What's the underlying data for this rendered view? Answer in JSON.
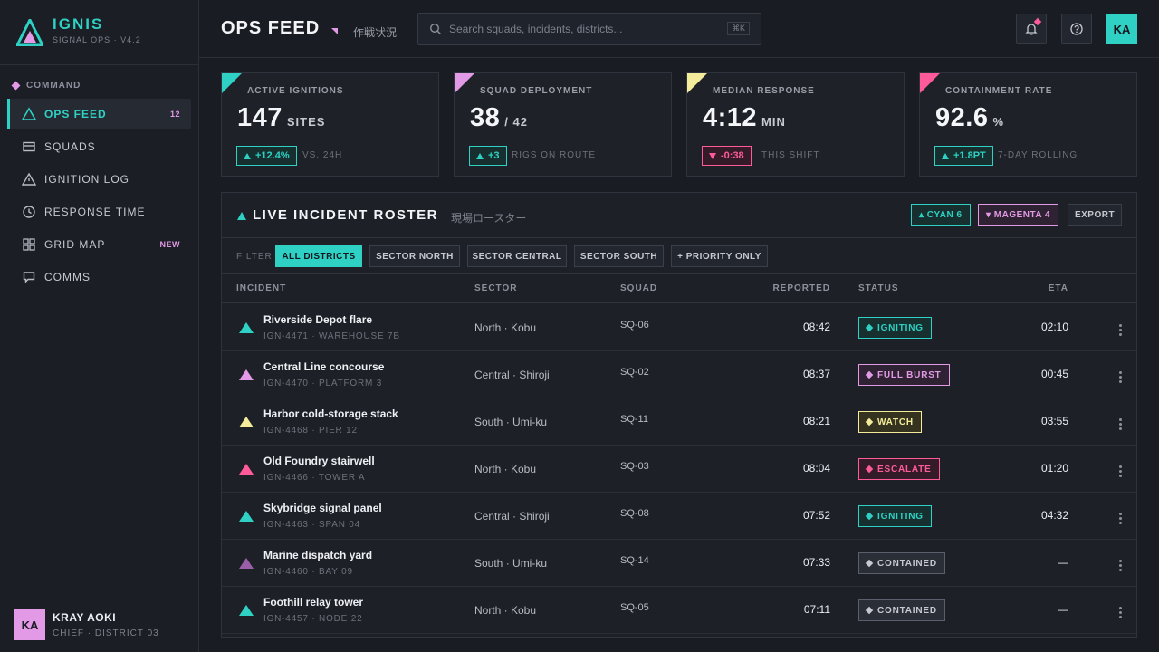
{
  "brand": {
    "name": "IGNIS",
    "sub": "SIGNAL OPS · V4.2"
  },
  "sidebar": {
    "section": "COMMAND",
    "items": [
      {
        "label": "OPS FEED",
        "badge": "12",
        "icon": "triangle-icon",
        "active": true
      },
      {
        "label": "SQUADS",
        "badge": "",
        "icon": "card-icon"
      },
      {
        "label": "IGNITION LOG",
        "badge": "",
        "icon": "warning-icon"
      },
      {
        "label": "RESPONSE TIME",
        "badge": "",
        "icon": "clock-icon"
      },
      {
        "label": "GRID MAP",
        "badge": "NEW",
        "icon": "grid-icon"
      },
      {
        "label": "COMMS",
        "badge": "",
        "icon": "chat-icon"
      }
    ],
    "user": {
      "initials": "KA",
      "name": "KRAY AOKI",
      "role": "CHIEF · DISTRICT 03"
    }
  },
  "header": {
    "title": "OPS FEED",
    "subtitle": "作戦状況",
    "search_placeholder": "Search squads, incidents, districts...",
    "search_shortcut": "⌘K",
    "avatar_initials": "KA"
  },
  "kpis": [
    {
      "label": "ACTIVE IGNITIONS",
      "value": "147",
      "unit": "SITES",
      "delta": "+12.4%",
      "dir": "up",
      "note": "VS. 24H",
      "accent": "#2ed1c4"
    },
    {
      "label": "SQUAD DEPLOYMENT",
      "value": "38",
      "unit": "/ 42",
      "delta": "+3",
      "dir": "up",
      "note": "RIGS ON ROUTE",
      "accent": "#e39ae6"
    },
    {
      "label": "MEDIAN RESPONSE",
      "value": "4:12",
      "unit": "MIN",
      "delta": "-0:38",
      "dir": "down",
      "note": "THIS SHIFT",
      "accent": "#f4ec9a"
    },
    {
      "label": "CONTAINMENT RATE",
      "value": "92.6",
      "unit": "%",
      "delta": "+1.8PT",
      "dir": "up",
      "note": "7-DAY ROLLING",
      "accent": "#ff5b9a"
    }
  ],
  "roster": {
    "title": "LIVE INCIDENT ROSTER",
    "subtitle": "現場ロースター",
    "chip_cyan": "▴ CYAN 6",
    "chip_magenta": "▾ MAGENTA 4",
    "export_label": "EXPORT",
    "filter_label": "FILTER",
    "filters": [
      "ALL DISTRICTS",
      "SECTOR NORTH",
      "SECTOR CENTRAL",
      "SECTOR SOUTH",
      "+ PRIORITY ONLY"
    ],
    "columns": {
      "incident": "INCIDENT",
      "sector": "SECTOR",
      "squad": "SQUAD",
      "reported": "REPORTED",
      "status": "STATUS",
      "eta": "ETA"
    },
    "rows": [
      {
        "name": "Riverside Depot flare",
        "id": "IGN-4471 · WAREHOUSE 7B",
        "sector": "North · Kobu",
        "squad": "SQ-06",
        "reported": "08:42",
        "status": "IGNITING",
        "eta": "02:10",
        "color": "#2ed1c4"
      },
      {
        "name": "Central Line concourse",
        "id": "IGN-4470 · PLATFORM 3",
        "sector": "Central · Shiroji",
        "squad": "SQ-02",
        "reported": "08:37",
        "status": "FULL BURST",
        "eta": "00:45",
        "color": "#e39ae6"
      },
      {
        "name": "Harbor cold-storage stack",
        "id": "IGN-4468 · PIER 12",
        "sector": "South · Umi-ku",
        "squad": "SQ-11",
        "reported": "08:21",
        "status": "WATCH",
        "eta": "03:55",
        "color": "#f4ec9a"
      },
      {
        "name": "Old Foundry stairwell",
        "id": "IGN-4466 · TOWER A",
        "sector": "North · Kobu",
        "squad": "SQ-03",
        "reported": "08:04",
        "status": "ESCALATE",
        "eta": "01:20",
        "color": "#ff5b9a"
      },
      {
        "name": "Skybridge signal panel",
        "id": "IGN-4463 · SPAN 04",
        "sector": "Central · Shiroji",
        "squad": "SQ-08",
        "reported": "07:52",
        "status": "IGNITING",
        "eta": "04:32",
        "color": "#2ed1c4"
      },
      {
        "name": "Marine dispatch yard",
        "id": "IGN-4460 · BAY 09",
        "sector": "South · Umi-ku",
        "squad": "SQ-14",
        "reported": "07:33",
        "status": "CONTAINED",
        "eta": "—",
        "color": "#9a5fa8"
      },
      {
        "name": "Foothill relay tower",
        "id": "IGN-4457 · NODE 22",
        "sector": "North · Kobu",
        "squad": "SQ-05",
        "reported": "07:11",
        "status": "CONTAINED",
        "eta": "—",
        "color": "#2ed1c4"
      }
    ]
  }
}
